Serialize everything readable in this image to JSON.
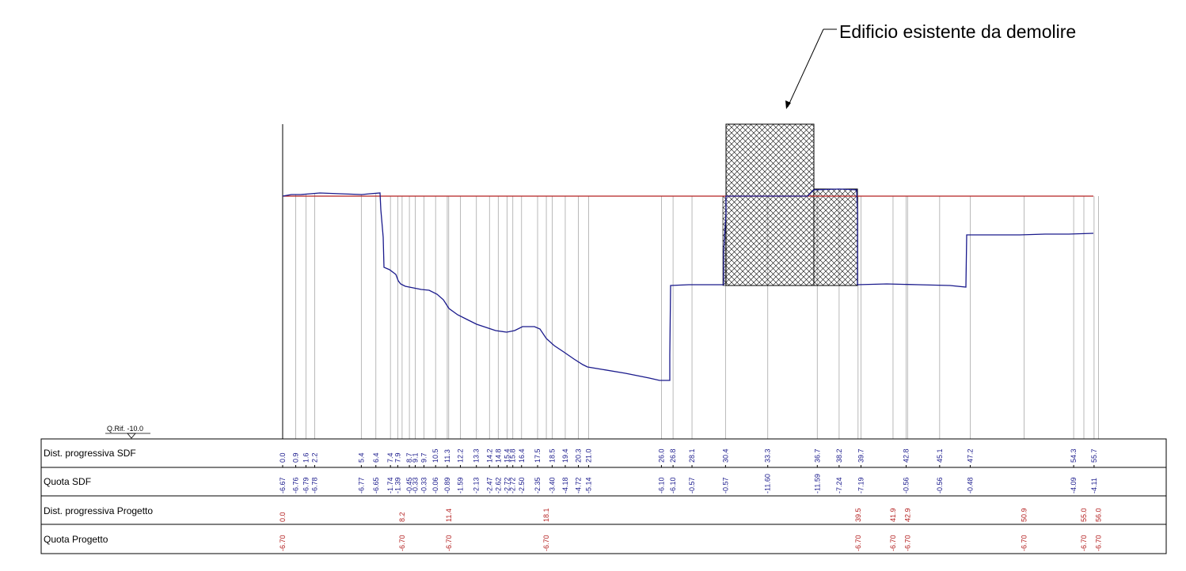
{
  "annotation": "Edificio esistente da demolire",
  "reference_level": "Q.Rif. -10.0",
  "rows": {
    "dist_sdf": "Dist. progressiva SDF",
    "quota_sdf": "Quota SDF",
    "dist_progetto": "Dist. progressiva Progetto",
    "quota_progetto": "Quota Progetto"
  },
  "colors": {
    "terrain": "#1a1a8c",
    "project": "#b42020",
    "station": "#a8a8a8",
    "grid": "#000000",
    "hatch": "#000000"
  },
  "stations_sdf": [
    {
      "dist": "0.0",
      "quota": "-6.67"
    },
    {
      "dist": "0.9",
      "quota": "-6.76"
    },
    {
      "dist": "1.6",
      "quota": "-6.79"
    },
    {
      "dist": "2.2",
      "quota": "-6.78"
    },
    {
      "dist": "5.4",
      "quota": "-6.77"
    },
    {
      "dist": "6.4",
      "quota": "-6.65"
    },
    {
      "dist": "7.4",
      "quota": "-1.74"
    },
    {
      "dist": "7.9",
      "quota": "-1.39"
    },
    {
      "dist": "8.7",
      "quota": "-0.45"
    },
    {
      "dist": "9.1",
      "quota": "-0.33"
    },
    {
      "dist": "9.7",
      "quota": "-0.33"
    },
    {
      "dist": "10.5",
      "quota": "-0.06"
    },
    {
      "dist": "11.3",
      "quota": "-0.89"
    },
    {
      "dist": "12.2",
      "quota": "-1.59"
    },
    {
      "dist": "13.3",
      "quota": "-2.13"
    },
    {
      "dist": "14.2",
      "quota": "-2.47"
    },
    {
      "dist": "14.8",
      "quota": "-2.62"
    },
    {
      "dist": "15.4",
      "quota": "-2.72"
    },
    {
      "dist": "15.8",
      "quota": "-2.72"
    },
    {
      "dist": "16.4",
      "quota": "-2.50"
    },
    {
      "dist": "17.5",
      "quota": "-2.35"
    },
    {
      "dist": "18.5",
      "quota": "-3.40"
    },
    {
      "dist": "19.4",
      "quota": "-4.18"
    },
    {
      "dist": "20.3",
      "quota": "-4.72"
    },
    {
      "dist": "21.0",
      "quota": "-5.14"
    },
    {
      "dist": "26.0",
      "quota": "-6.10"
    },
    {
      "dist": "26.8",
      "quota": "-6.10"
    },
    {
      "dist": "28.1",
      "quota": "-0.57"
    },
    {
      "dist": "30.4",
      "quota": "-0.57"
    },
    {
      "dist": "33.3",
      "quota": "-11.60"
    },
    {
      "dist": "36.7",
      "quota": "-11.59"
    },
    {
      "dist": "38.2",
      "quota": "-7.24"
    },
    {
      "dist": "39.7",
      "quota": "-7.19"
    },
    {
      "dist": "42.8",
      "quota": "-0.56"
    },
    {
      "dist": "45.1",
      "quota": "-0.56"
    },
    {
      "dist": "47.2",
      "quota": "-0.48"
    },
    {
      "dist": "54.3",
      "quota": "-4.09"
    },
    {
      "dist": "55.7",
      "quota": "-4.11"
    }
  ],
  "stations_progetto": [
    {
      "dist": "0.0",
      "quota": "-6.70"
    },
    {
      "dist": "8.2",
      "quota": "-6.70"
    },
    {
      "dist": "11.4",
      "quota": "-6.70"
    },
    {
      "dist": "18.1",
      "quota": "-6.70"
    },
    {
      "dist": "39.5",
      "quota": "-6.70"
    },
    {
      "dist": "41.9",
      "quota": "-6.70"
    },
    {
      "dist": "42.9",
      "quota": "-6.70"
    },
    {
      "dist": "50.9",
      "quota": "-6.70"
    },
    {
      "dist": "55.0",
      "quota": "-6.70"
    },
    {
      "dist": "56.0",
      "quota": "-6.70"
    }
  ]
}
